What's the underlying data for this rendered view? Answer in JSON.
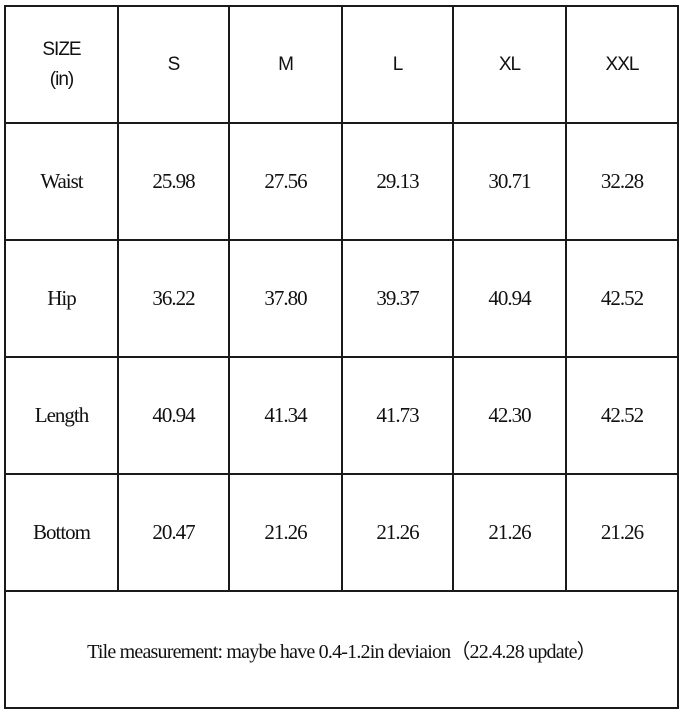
{
  "table": {
    "corner_label_line1": "SIZE",
    "corner_label_line2": "(in)",
    "sizes": [
      "S",
      "M",
      "L",
      "XL",
      "XXL"
    ],
    "rows": [
      {
        "label": "Waist",
        "values": [
          "25.98",
          "27.56",
          "29.13",
          "30.71",
          "32.28"
        ]
      },
      {
        "label": "Hip",
        "values": [
          "36.22",
          "37.80",
          "39.37",
          "40.94",
          "42.52"
        ]
      },
      {
        "label": "Length",
        "values": [
          "40.94",
          "41.34",
          "41.73",
          "42.30",
          "42.52"
        ]
      },
      {
        "label": "Bottom",
        "values": [
          "20.47",
          "21.26",
          "21.26",
          "21.26",
          "21.26"
        ]
      }
    ],
    "note": "Tile measurement: maybe have 0.4-1.2in deviaion（22.4.28 update）"
  }
}
